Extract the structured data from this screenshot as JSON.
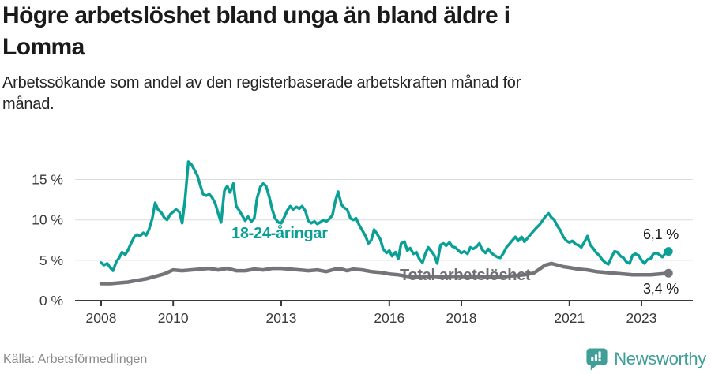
{
  "header": {
    "title_line1": "Högre arbetslöshet bland unga än bland äldre i",
    "title_line2": "Lomma",
    "subtitle_line1": "Arbetssökande som andel av den registerbaserade arbetskraften månad för",
    "subtitle_line2": "månad."
  },
  "footer": {
    "source": "Källa: Arbetsförmedlingen",
    "brand": "Newsworthy",
    "brand_color": "#3f9e96"
  },
  "chart_data": {
    "type": "line",
    "title": "Högre arbetslöshet bland unga än bland äldre i Lomma",
    "subtitle": "Arbetssökande som andel av den registerbaserade arbetskraften månad för månad.",
    "unit": "%",
    "grid": "horizontal",
    "x_range": [
      2008,
      2023.83
    ],
    "y_range": [
      0,
      17.5
    ],
    "axis_color": "#3a3a3a",
    "grid_color": "#dcdcdc",
    "x_ticks": [
      {
        "year": 2008,
        "label": "2008"
      },
      {
        "year": 2010,
        "label": "2010"
      },
      {
        "year": 2013,
        "label": "2013"
      },
      {
        "year": 2016,
        "label": "2016"
      },
      {
        "year": 2018,
        "label": "2018"
      },
      {
        "year": 2021,
        "label": "2021"
      },
      {
        "year": 2023,
        "label": "2023"
      }
    ],
    "y_ticks": [
      {
        "value": 0,
        "label": "0 %"
      },
      {
        "value": 5,
        "label": "5 %"
      },
      {
        "value": 10,
        "label": "10 %"
      },
      {
        "value": 15,
        "label": "15 %"
      }
    ],
    "series": [
      {
        "name": "18-24-åringar",
        "color": "#0aa096",
        "end_label": "6,1 %",
        "end_value": 6.1,
        "points": [
          [
            2008.0,
            4.7
          ],
          [
            2008.08,
            4.4
          ],
          [
            2008.17,
            4.6
          ],
          [
            2008.25,
            4.1
          ],
          [
            2008.33,
            3.7
          ],
          [
            2008.42,
            4.8
          ],
          [
            2008.5,
            5.3
          ],
          [
            2008.58,
            6.0
          ],
          [
            2008.67,
            5.7
          ],
          [
            2008.75,
            6.3
          ],
          [
            2008.83,
            7.1
          ],
          [
            2008.92,
            7.9
          ],
          [
            2009.0,
            8.2
          ],
          [
            2009.08,
            8.0
          ],
          [
            2009.17,
            8.4
          ],
          [
            2009.25,
            8.1
          ],
          [
            2009.33,
            8.8
          ],
          [
            2009.42,
            10.2
          ],
          [
            2009.5,
            12.1
          ],
          [
            2009.58,
            11.3
          ],
          [
            2009.67,
            10.9
          ],
          [
            2009.75,
            10.3
          ],
          [
            2009.83,
            10.0
          ],
          [
            2009.92,
            10.7
          ],
          [
            2010.0,
            11.0
          ],
          [
            2010.08,
            11.3
          ],
          [
            2010.17,
            11.0
          ],
          [
            2010.25,
            9.6
          ],
          [
            2010.33,
            12.5
          ],
          [
            2010.42,
            17.2
          ],
          [
            2010.5,
            16.9
          ],
          [
            2010.58,
            16.3
          ],
          [
            2010.67,
            15.5
          ],
          [
            2010.75,
            14.3
          ],
          [
            2010.83,
            13.2
          ],
          [
            2010.92,
            13.0
          ],
          [
            2011.0,
            13.2
          ],
          [
            2011.08,
            12.8
          ],
          [
            2011.17,
            12.0
          ],
          [
            2011.25,
            10.8
          ],
          [
            2011.33,
            9.7
          ],
          [
            2011.42,
            13.6
          ],
          [
            2011.5,
            14.2
          ],
          [
            2011.58,
            13.4
          ],
          [
            2011.67,
            14.5
          ],
          [
            2011.75,
            11.7
          ],
          [
            2011.83,
            11.2
          ],
          [
            2011.92,
            10.5
          ],
          [
            2012.0,
            9.9
          ],
          [
            2012.08,
            10.4
          ],
          [
            2012.17,
            9.8
          ],
          [
            2012.25,
            10.2
          ],
          [
            2012.33,
            12.7
          ],
          [
            2012.42,
            14.1
          ],
          [
            2012.5,
            14.5
          ],
          [
            2012.58,
            14.2
          ],
          [
            2012.67,
            12.8
          ],
          [
            2012.75,
            11.3
          ],
          [
            2012.83,
            10.2
          ],
          [
            2012.92,
            9.7
          ],
          [
            2013.0,
            9.6
          ],
          [
            2013.08,
            10.3
          ],
          [
            2013.17,
            11.2
          ],
          [
            2013.25,
            11.7
          ],
          [
            2013.33,
            11.3
          ],
          [
            2013.42,
            11.6
          ],
          [
            2013.5,
            11.4
          ],
          [
            2013.58,
            11.7
          ],
          [
            2013.67,
            11.1
          ],
          [
            2013.75,
            9.9
          ],
          [
            2013.83,
            9.6
          ],
          [
            2013.92,
            9.8
          ],
          [
            2014.0,
            9.5
          ],
          [
            2014.08,
            9.7
          ],
          [
            2014.17,
            10.0
          ],
          [
            2014.25,
            9.8
          ],
          [
            2014.33,
            10.1
          ],
          [
            2014.42,
            10.6
          ],
          [
            2014.5,
            12.3
          ],
          [
            2014.58,
            13.5
          ],
          [
            2014.67,
            11.9
          ],
          [
            2014.75,
            11.5
          ],
          [
            2014.83,
            11.3
          ],
          [
            2014.92,
            10.2
          ],
          [
            2015.0,
            10.0
          ],
          [
            2015.08,
            10.2
          ],
          [
            2015.17,
            9.3
          ],
          [
            2015.25,
            8.7
          ],
          [
            2015.33,
            8.1
          ],
          [
            2015.42,
            7.1
          ],
          [
            2015.5,
            7.5
          ],
          [
            2015.58,
            8.8
          ],
          [
            2015.67,
            8.2
          ],
          [
            2015.75,
            7.6
          ],
          [
            2015.83,
            6.4
          ],
          [
            2015.92,
            5.9
          ],
          [
            2016.0,
            6.2
          ],
          [
            2016.08,
            5.5
          ],
          [
            2016.17,
            6.0
          ],
          [
            2016.25,
            5.2
          ],
          [
            2016.33,
            7.1
          ],
          [
            2016.42,
            7.3
          ],
          [
            2016.5,
            6.2
          ],
          [
            2016.58,
            6.5
          ],
          [
            2016.67,
            5.8
          ],
          [
            2016.75,
            6.0
          ],
          [
            2016.83,
            5.2
          ],
          [
            2016.92,
            4.7
          ],
          [
            2017.0,
            5.8
          ],
          [
            2017.08,
            6.6
          ],
          [
            2017.17,
            6.1
          ],
          [
            2017.25,
            5.6
          ],
          [
            2017.33,
            4.6
          ],
          [
            2017.42,
            6.9
          ],
          [
            2017.5,
            7.1
          ],
          [
            2017.58,
            6.8
          ],
          [
            2017.67,
            7.2
          ],
          [
            2017.75,
            6.7
          ],
          [
            2017.83,
            6.6
          ],
          [
            2017.92,
            6.2
          ],
          [
            2018.0,
            5.9
          ],
          [
            2018.08,
            6.1
          ],
          [
            2018.17,
            5.8
          ],
          [
            2018.25,
            6.6
          ],
          [
            2018.33,
            6.4
          ],
          [
            2018.42,
            6.7
          ],
          [
            2018.5,
            7.1
          ],
          [
            2018.58,
            6.3
          ],
          [
            2018.67,
            5.9
          ],
          [
            2018.75,
            6.4
          ],
          [
            2018.83,
            5.9
          ],
          [
            2018.92,
            5.6
          ],
          [
            2019.0,
            5.4
          ],
          [
            2019.08,
            5.3
          ],
          [
            2019.17,
            5.9
          ],
          [
            2019.25,
            6.6
          ],
          [
            2019.33,
            7.0
          ],
          [
            2019.42,
            7.5
          ],
          [
            2019.5,
            7.9
          ],
          [
            2019.58,
            7.4
          ],
          [
            2019.67,
            7.9
          ],
          [
            2019.75,
            7.3
          ],
          [
            2019.83,
            7.7
          ],
          [
            2019.92,
            8.2
          ],
          [
            2020.0,
            8.6
          ],
          [
            2020.08,
            9.0
          ],
          [
            2020.17,
            9.4
          ],
          [
            2020.25,
            9.9
          ],
          [
            2020.33,
            10.4
          ],
          [
            2020.42,
            10.8
          ],
          [
            2020.5,
            10.3
          ],
          [
            2020.58,
            10.0
          ],
          [
            2020.67,
            9.2
          ],
          [
            2020.75,
            8.7
          ],
          [
            2020.83,
            7.9
          ],
          [
            2020.92,
            7.4
          ],
          [
            2021.0,
            7.2
          ],
          [
            2021.08,
            7.4
          ],
          [
            2021.17,
            7.0
          ],
          [
            2021.25,
            6.9
          ],
          [
            2021.33,
            6.6
          ],
          [
            2021.42,
            7.3
          ],
          [
            2021.5,
            8.0
          ],
          [
            2021.58,
            6.9
          ],
          [
            2021.67,
            6.4
          ],
          [
            2021.75,
            5.9
          ],
          [
            2021.83,
            5.6
          ],
          [
            2021.92,
            5.0
          ],
          [
            2022.0,
            4.7
          ],
          [
            2022.08,
            4.5
          ],
          [
            2022.17,
            5.4
          ],
          [
            2022.25,
            6.1
          ],
          [
            2022.33,
            6.0
          ],
          [
            2022.42,
            5.5
          ],
          [
            2022.5,
            5.3
          ],
          [
            2022.58,
            4.8
          ],
          [
            2022.67,
            4.6
          ],
          [
            2022.75,
            5.6
          ],
          [
            2022.83,
            5.8
          ],
          [
            2022.92,
            5.6
          ],
          [
            2023.0,
            5.0
          ],
          [
            2023.08,
            4.6
          ],
          [
            2023.17,
            5.1
          ],
          [
            2023.25,
            5.2
          ],
          [
            2023.33,
            5.8
          ],
          [
            2023.42,
            5.9
          ],
          [
            2023.5,
            5.7
          ],
          [
            2023.58,
            5.4
          ],
          [
            2023.67,
            5.9
          ],
          [
            2023.75,
            6.1
          ]
        ]
      },
      {
        "name": "Total arbetslöshet",
        "color": "#757579",
        "end_label": "3,4 %",
        "end_value": 3.4,
        "points": [
          [
            2008.0,
            2.1
          ],
          [
            2008.25,
            2.1
          ],
          [
            2008.5,
            2.2
          ],
          [
            2008.75,
            2.3
          ],
          [
            2009.0,
            2.5
          ],
          [
            2009.25,
            2.7
          ],
          [
            2009.5,
            3.0
          ],
          [
            2009.75,
            3.3
          ],
          [
            2010.0,
            3.8
          ],
          [
            2010.25,
            3.7
          ],
          [
            2010.5,
            3.8
          ],
          [
            2010.75,
            3.9
          ],
          [
            2011.0,
            4.0
          ],
          [
            2011.25,
            3.8
          ],
          [
            2011.5,
            4.0
          ],
          [
            2011.75,
            3.7
          ],
          [
            2012.0,
            3.7
          ],
          [
            2012.25,
            3.9
          ],
          [
            2012.5,
            3.8
          ],
          [
            2012.75,
            4.0
          ],
          [
            2013.0,
            4.0
          ],
          [
            2013.25,
            3.9
          ],
          [
            2013.5,
            3.8
          ],
          [
            2013.75,
            3.7
          ],
          [
            2014.0,
            3.8
          ],
          [
            2014.25,
            3.6
          ],
          [
            2014.5,
            3.9
          ],
          [
            2014.67,
            3.9
          ],
          [
            2014.83,
            3.7
          ],
          [
            2015.0,
            3.9
          ],
          [
            2015.25,
            3.8
          ],
          [
            2015.5,
            3.6
          ],
          [
            2015.75,
            3.5
          ],
          [
            2016.0,
            3.3
          ],
          [
            2016.25,
            3.2
          ],
          [
            2016.5,
            3.0
          ],
          [
            2016.75,
            2.9
          ],
          [
            2017.0,
            3.0
          ],
          [
            2017.25,
            3.0
          ],
          [
            2017.5,
            2.9
          ],
          [
            2017.75,
            3.0
          ],
          [
            2018.0,
            3.0
          ],
          [
            2018.25,
            2.9
          ],
          [
            2018.5,
            3.0
          ],
          [
            2018.75,
            2.9
          ],
          [
            2019.0,
            2.9
          ],
          [
            2019.25,
            3.0
          ],
          [
            2019.5,
            3.1
          ],
          [
            2019.75,
            3.2
          ],
          [
            2020.0,
            3.4
          ],
          [
            2020.17,
            3.9
          ],
          [
            2020.33,
            4.4
          ],
          [
            2020.5,
            4.6
          ],
          [
            2020.67,
            4.4
          ],
          [
            2020.83,
            4.2
          ],
          [
            2021.0,
            4.1
          ],
          [
            2021.25,
            3.9
          ],
          [
            2021.5,
            3.8
          ],
          [
            2021.75,
            3.6
          ],
          [
            2022.0,
            3.5
          ],
          [
            2022.25,
            3.4
          ],
          [
            2022.5,
            3.3
          ],
          [
            2022.75,
            3.2
          ],
          [
            2023.0,
            3.2
          ],
          [
            2023.25,
            3.2
          ],
          [
            2023.5,
            3.3
          ],
          [
            2023.75,
            3.4
          ]
        ]
      }
    ]
  }
}
